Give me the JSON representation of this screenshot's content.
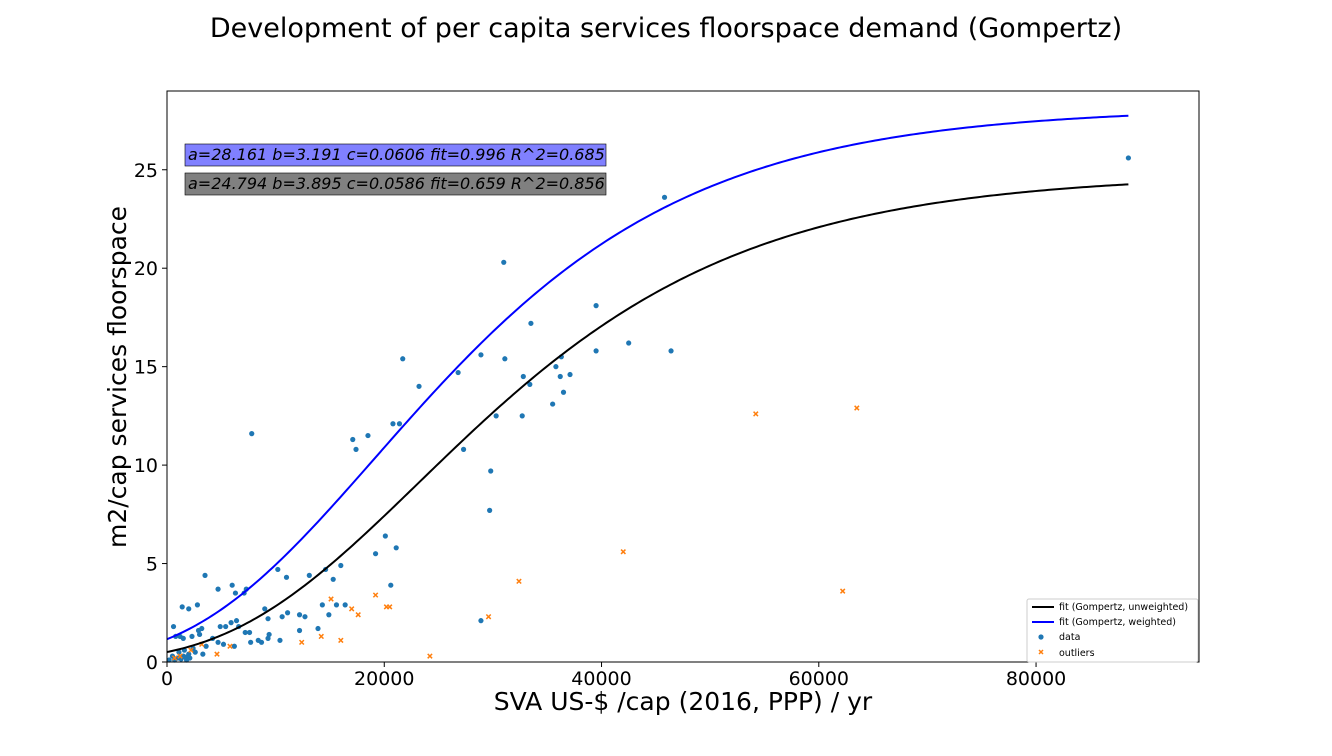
{
  "chart_data": {
    "type": "scatter",
    "title": "Development of per capita services floorspace demand (Gompertz)",
    "xlabel": "SVA US-$ /cap (2016, PPP) / yr",
    "ylabel": "m2/cap services floorspace",
    "xlim": [
      0,
      95000
    ],
    "ylim": [
      0,
      29
    ],
    "x_ticks": [
      0,
      20000,
      40000,
      60000,
      80000
    ],
    "y_ticks": [
      0,
      5,
      10,
      15,
      20,
      25
    ],
    "grid": false,
    "legend_position": "bottom-right",
    "annotations": [
      {
        "text": "a=28.161 b=3.191 c=0.0606 fit=0.996 R^2=0.685",
        "color": "#8080ff"
      },
      {
        "text": "a=24.794 b=3.895 c=0.0586 fit=0.659 R^2=0.856",
        "color": "#808080"
      }
    ],
    "curves": [
      {
        "name": "fit (Gompertz, unweighted)",
        "color": "#000000",
        "a": 24.794,
        "b": 3.895,
        "c": 0.0586,
        "x_range": [
          0,
          88500
        ]
      },
      {
        "name": "fit (Gompertz, weighted)",
        "color": "#0000ff",
        "a": 28.161,
        "b": 3.191,
        "c": 0.0606,
        "x_range": [
          0,
          88500
        ]
      }
    ],
    "series": [
      {
        "name": "data",
        "color": "#1f77b4",
        "marker": "circle",
        "points": [
          [
            88500,
            25.6
          ],
          [
            45800,
            23.6
          ],
          [
            31000,
            20.3
          ],
          [
            39500,
            18.1
          ],
          [
            33500,
            17.2
          ],
          [
            42500,
            16.2
          ],
          [
            46400,
            15.8
          ],
          [
            39500,
            15.8
          ],
          [
            21700,
            15.4
          ],
          [
            28900,
            15.6
          ],
          [
            31100,
            15.4
          ],
          [
            36300,
            15.5
          ],
          [
            35800,
            15.0
          ],
          [
            37100,
            14.6
          ],
          [
            36200,
            14.5
          ],
          [
            32800,
            14.5
          ],
          [
            33400,
            14.1
          ],
          [
            26800,
            14.7
          ],
          [
            23200,
            14.0
          ],
          [
            36500,
            13.7
          ],
          [
            35500,
            13.1
          ],
          [
            30300,
            12.5
          ],
          [
            32700,
            12.5
          ],
          [
            20800,
            12.1
          ],
          [
            21400,
            12.1
          ],
          [
            18500,
            11.5
          ],
          [
            17100,
            11.3
          ],
          [
            7800,
            11.6
          ],
          [
            17400,
            10.8
          ],
          [
            27300,
            10.8
          ],
          [
            29800,
            9.7
          ],
          [
            29700,
            7.7
          ],
          [
            20100,
            6.4
          ],
          [
            21100,
            5.8
          ],
          [
            19200,
            5.5
          ],
          [
            28900,
            2.1
          ],
          [
            20600,
            3.9
          ],
          [
            16000,
            4.9
          ],
          [
            14600,
            4.7
          ],
          [
            15300,
            4.2
          ],
          [
            13100,
            4.4
          ],
          [
            10200,
            4.7
          ],
          [
            11000,
            4.3
          ],
          [
            3500,
            4.4
          ],
          [
            6000,
            3.9
          ],
          [
            7300,
            3.7
          ],
          [
            4700,
            3.7
          ],
          [
            7100,
            3.5
          ],
          [
            6300,
            3.5
          ],
          [
            1400,
            2.8
          ],
          [
            2000,
            2.7
          ],
          [
            2800,
            2.9
          ],
          [
            9000,
            2.7
          ],
          [
            11100,
            2.5
          ],
          [
            12200,
            2.4
          ],
          [
            12700,
            2.3
          ],
          [
            10600,
            2.3
          ],
          [
            9300,
            2.2
          ],
          [
            14300,
            2.9
          ],
          [
            15600,
            2.9
          ],
          [
            16400,
            2.9
          ],
          [
            13900,
            1.7
          ],
          [
            12200,
            1.6
          ],
          [
            14900,
            2.4
          ],
          [
            6400,
            2.1
          ],
          [
            6600,
            1.8
          ],
          [
            5900,
            2.0
          ],
          [
            5400,
            1.8
          ],
          [
            4900,
            1.8
          ],
          [
            2900,
            1.6
          ],
          [
            3200,
            1.7
          ],
          [
            2300,
            1.3
          ],
          [
            600,
            1.8
          ],
          [
            800,
            1.3
          ],
          [
            1200,
            1.3
          ],
          [
            1500,
            1.2
          ],
          [
            7200,
            1.5
          ],
          [
            7600,
            1.5
          ],
          [
            9400,
            1.4
          ],
          [
            9300,
            1.2
          ],
          [
            10400,
            1.1
          ],
          [
            8400,
            1.1
          ],
          [
            8700,
            1.0
          ],
          [
            7700,
            1.0
          ],
          [
            3000,
            1.4
          ],
          [
            4200,
            1.2
          ],
          [
            4700,
            1.0
          ],
          [
            5200,
            0.9
          ],
          [
            6200,
            0.8
          ],
          [
            3600,
            0.8
          ],
          [
            2400,
            0.7
          ],
          [
            1600,
            0.6
          ],
          [
            1100,
            0.5
          ],
          [
            2000,
            0.4
          ],
          [
            2600,
            0.5
          ],
          [
            3300,
            0.4
          ],
          [
            500,
            0.3
          ],
          [
            1000,
            0.2
          ],
          [
            1300,
            0.15
          ],
          [
            1500,
            0.3
          ],
          [
            1700,
            0.25
          ],
          [
            2100,
            0.2
          ],
          [
            200,
            0.1
          ],
          [
            700,
            0.1
          ],
          [
            1800,
            0.1
          ]
        ]
      },
      {
        "name": "outliers",
        "color": "#ff7f0e",
        "marker": "x",
        "points": [
          [
            63500,
            12.9
          ],
          [
            54200,
            12.6
          ],
          [
            42000,
            5.6
          ],
          [
            62200,
            3.6
          ],
          [
            32400,
            4.1
          ],
          [
            29600,
            2.3
          ],
          [
            24200,
            0.3
          ],
          [
            19200,
            3.4
          ],
          [
            20200,
            2.8
          ],
          [
            20500,
            2.8
          ],
          [
            15100,
            3.2
          ],
          [
            17000,
            2.7
          ],
          [
            17600,
            2.4
          ],
          [
            16000,
            1.1
          ],
          [
            14200,
            1.3
          ],
          [
            12400,
            1.0
          ],
          [
            4600,
            0.4
          ],
          [
            5800,
            0.8
          ],
          [
            3200,
            0.9
          ],
          [
            2200,
            0.6
          ],
          [
            1200,
            0.3
          ],
          [
            700,
            0.2
          ]
        ]
      }
    ]
  }
}
